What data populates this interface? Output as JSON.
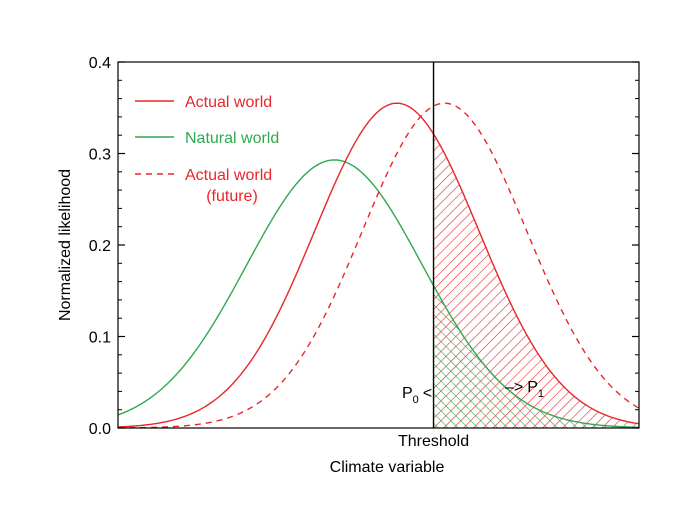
{
  "chart_data": {
    "type": "line",
    "xlabel": "Climate variable",
    "ylabel": "Normalized likelihood",
    "ylim": [
      0,
      0.4
    ],
    "yticks": [
      "0.0",
      "0.1",
      "0.2",
      "0.3",
      "0.4"
    ],
    "threshold_label": "Threshold",
    "threshold_x": 0.0,
    "xlim": [
      -4.3,
      2.8
    ],
    "series": [
      {
        "name": "Actual world",
        "color": "#e8262b",
        "dash": "solid",
        "mean": -0.5,
        "sigma": 1.12,
        "peak": 0.355
      },
      {
        "name": "Natural world",
        "color": "#2fa84f",
        "dash": "solid",
        "mean": -1.35,
        "sigma": 1.2,
        "peak": 0.293
      },
      {
        "name_line1": "Actual world",
        "name_line2": "(future)",
        "color": "#e8262b",
        "dash": "dashed",
        "mean": 0.15,
        "sigma": 1.12,
        "peak": 0.355
      }
    ],
    "annotations": {
      "p0_main": "P",
      "p0_sub": "0",
      "p0_arrow": "<",
      "p1_arrow": "–>",
      "p1_main": "P",
      "p1_sub": "1"
    },
    "legend_position": "top-left",
    "grid": false
  }
}
